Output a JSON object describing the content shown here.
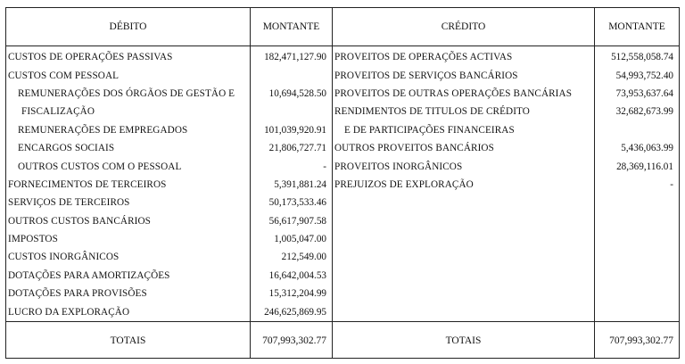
{
  "header": {
    "debit": "DÉBITO",
    "amount_left": "MONTANTE",
    "credit": "CRÉDITO",
    "amount_right": "MONTANTE"
  },
  "debit_rows": [
    {
      "label": "CUSTOS DE OPERAÇÕES PASSIVAS",
      "amount": "182,471,127.90",
      "indent": 0
    },
    {
      "label": "CUSTOS COM PESSOAL",
      "amount": "",
      "indent": 0
    },
    {
      "label": "REMUNERAÇÕES DOS ÓRGÃOS DE GESTÃO E",
      "amount": "10,694,528.50",
      "indent": 1
    },
    {
      "label": "FISCALIZAÇÃO",
      "amount": "",
      "indent": 2
    },
    {
      "label": "REMUNERAÇÕES DE EMPREGADOS",
      "amount": "101,039,920.91",
      "indent": 1
    },
    {
      "label": "ENCARGOS SOCIAIS",
      "amount": "21,806,727.71",
      "indent": 1
    },
    {
      "label": "OUTROS CUSTOS COM O PESSOAL",
      "amount": "-",
      "indent": 1
    },
    {
      "label": "FORNECIMENTOS DE TERCEIROS",
      "amount": "5,391,881.24",
      "indent": 0
    },
    {
      "label": "SERVIÇOS DE TERCEIROS",
      "amount": "50,173,533.46",
      "indent": 0
    },
    {
      "label": "OUTROS CUSTOS BANCÁRIOS",
      "amount": "56,617,907.58",
      "indent": 0
    },
    {
      "label": "IMPOSTOS",
      "amount": "1,005,047.00",
      "indent": 0
    },
    {
      "label": "CUSTOS INORGÂNICOS",
      "amount": "212,549.00",
      "indent": 0
    },
    {
      "label": "DOTAÇÕES PARA AMORTIZAÇÕES",
      "amount": "16,642,004.53",
      "indent": 0
    },
    {
      "label": "DOTAÇÕES PARA PROVISÕES",
      "amount": "15,312,204.99",
      "indent": 0
    },
    {
      "label": "LUCRO DA EXPLORAÇÃO",
      "amount": "246,625,869.95",
      "indent": 0
    }
  ],
  "credit_rows": [
    {
      "label": "PROVEITOS DE OPERAÇÕES ACTIVAS",
      "amount": "512,558,058.74",
      "indent": 0
    },
    {
      "label": "PROVEITOS DE SERVIÇOS BANCÁRIOS",
      "amount": "54,993,752.40",
      "indent": 0
    },
    {
      "label": "PROVEITOS DE OUTRAS OPERAÇÕES BANCÁRIAS",
      "amount": "73,953,637.64",
      "indent": 0
    },
    {
      "label": "RENDIMENTOS DE TITULOS DE CRÉDITO",
      "amount": "32,682,673.99",
      "indent": 0
    },
    {
      "label": "E DE PARTICIPAÇÕES FINANCEIRAS",
      "amount": "",
      "indent": 1
    },
    {
      "label": "OUTROS PROVEITOS BANCÁRIOS",
      "amount": "5,436,063.99",
      "indent": 0
    },
    {
      "label": "PROVEITOS INORGÂNICOS",
      "amount": "28,369,116.01",
      "indent": 0
    },
    {
      "label": "PREJUIZOS DE EXPLORAÇÃO",
      "amount": "-",
      "indent": 0
    }
  ],
  "totals": {
    "left_label": "TOTAIS",
    "left_amount": "707,993,302.77",
    "right_label": "TOTAIS",
    "right_amount": "707,993,302.77"
  }
}
